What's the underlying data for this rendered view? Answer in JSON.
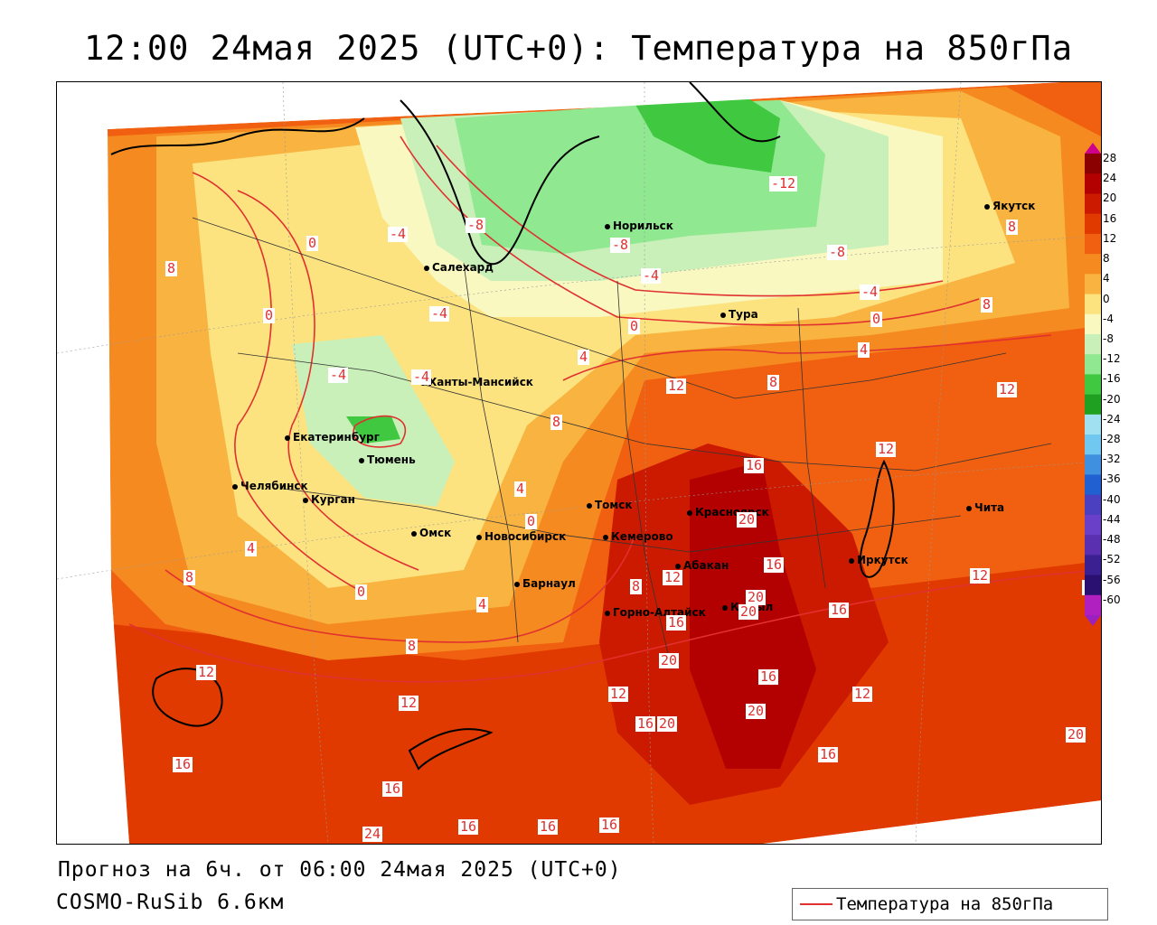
{
  "title": "12:00 24мая 2025 (UTC+0): Температура на 850гПа",
  "forecast_line": "Прогноз на 6ч. от 06:00 24мая 2025 (UTC+0)",
  "model_line": "COSMO-RuSib 6.6км",
  "legend_label": "Температура на 850гПа",
  "colors": {
    "isoline": "#e03030",
    "coast": "#000000"
  },
  "scale": {
    "labels": [
      "28",
      "24",
      "20",
      "16",
      "12",
      "8",
      "4",
      "0",
      "-4",
      "-8",
      "-12",
      "-16",
      "-20",
      "-24",
      "-28",
      "-32",
      "-36",
      "-40",
      "-44",
      "-48",
      "-52",
      "-56",
      "-60"
    ],
    "colors": [
      "#8b0000",
      "#b30000",
      "#cc1a00",
      "#e03a00",
      "#f06010",
      "#f58a20",
      "#f9b340",
      "#fce380",
      "#f8f8c0",
      "#c8f0b8",
      "#90e890",
      "#40c840",
      "#20a020",
      "#a0e0f0",
      "#70c8f0",
      "#4090e0",
      "#2060d0",
      "#4a40c0",
      "#6a40c8",
      "#5a30b0",
      "#3a2090",
      "#2a1070",
      "#b020c0"
    ]
  },
  "cities": [
    {
      "name": "Норильск"
    },
    {
      "name": "Салехард"
    },
    {
      "name": "Тура"
    },
    {
      "name": "Якутск"
    },
    {
      "name": "Ханты-Мансийск"
    },
    {
      "name": "Екатеринбург"
    },
    {
      "name": "Тюмень"
    },
    {
      "name": "Челябинск"
    },
    {
      "name": "Курган"
    },
    {
      "name": "Омск"
    },
    {
      "name": "Новосибирск"
    },
    {
      "name": "Томск"
    },
    {
      "name": "Кемерово"
    },
    {
      "name": "Красноярск"
    },
    {
      "name": "Барнаул"
    },
    {
      "name": "Абакан"
    },
    {
      "name": "Горно-Алтайск"
    },
    {
      "name": "Кызыл"
    },
    {
      "name": "Иркутск"
    },
    {
      "name": "Чита"
    }
  ],
  "isoline_labels": [
    "-12",
    "-8",
    "-8",
    "-8",
    "-4",
    "-4",
    "-4",
    "-4",
    "-4",
    "-4",
    "0",
    "0",
    "0",
    "0",
    "0",
    "0",
    "4",
    "4",
    "4",
    "4",
    "4",
    "8",
    "8",
    "8",
    "8",
    "8",
    "8",
    "8",
    "8",
    "12",
    "12",
    "12",
    "12",
    "12",
    "12",
    "12",
    "12",
    "12",
    "12",
    "16",
    "16",
    "16",
    "16",
    "16",
    "16",
    "16",
    "16",
    "16",
    "16",
    "16",
    "16",
    "20",
    "20",
    "20",
    "20",
    "20",
    "20",
    "20",
    "24"
  ]
}
